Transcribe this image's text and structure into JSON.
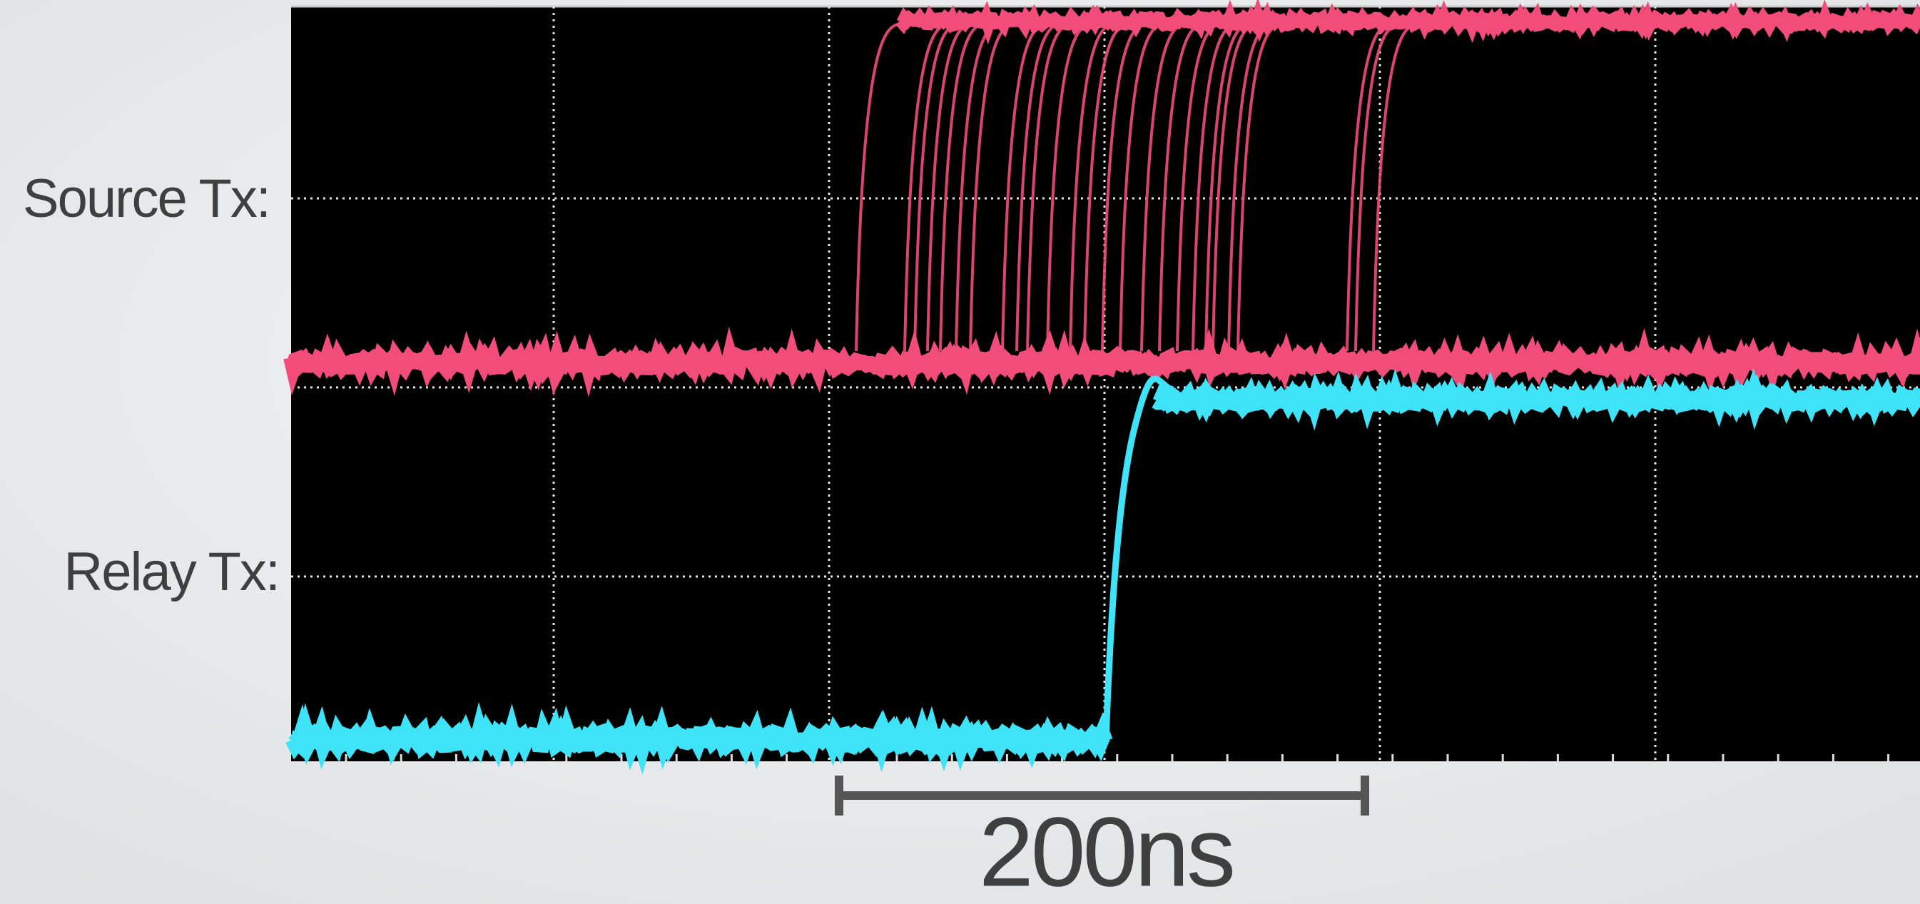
{
  "labels": {
    "source": "Source Tx:",
    "relay": "Relay Tx:"
  },
  "scale_bar": {
    "label": "200ns"
  }
}
